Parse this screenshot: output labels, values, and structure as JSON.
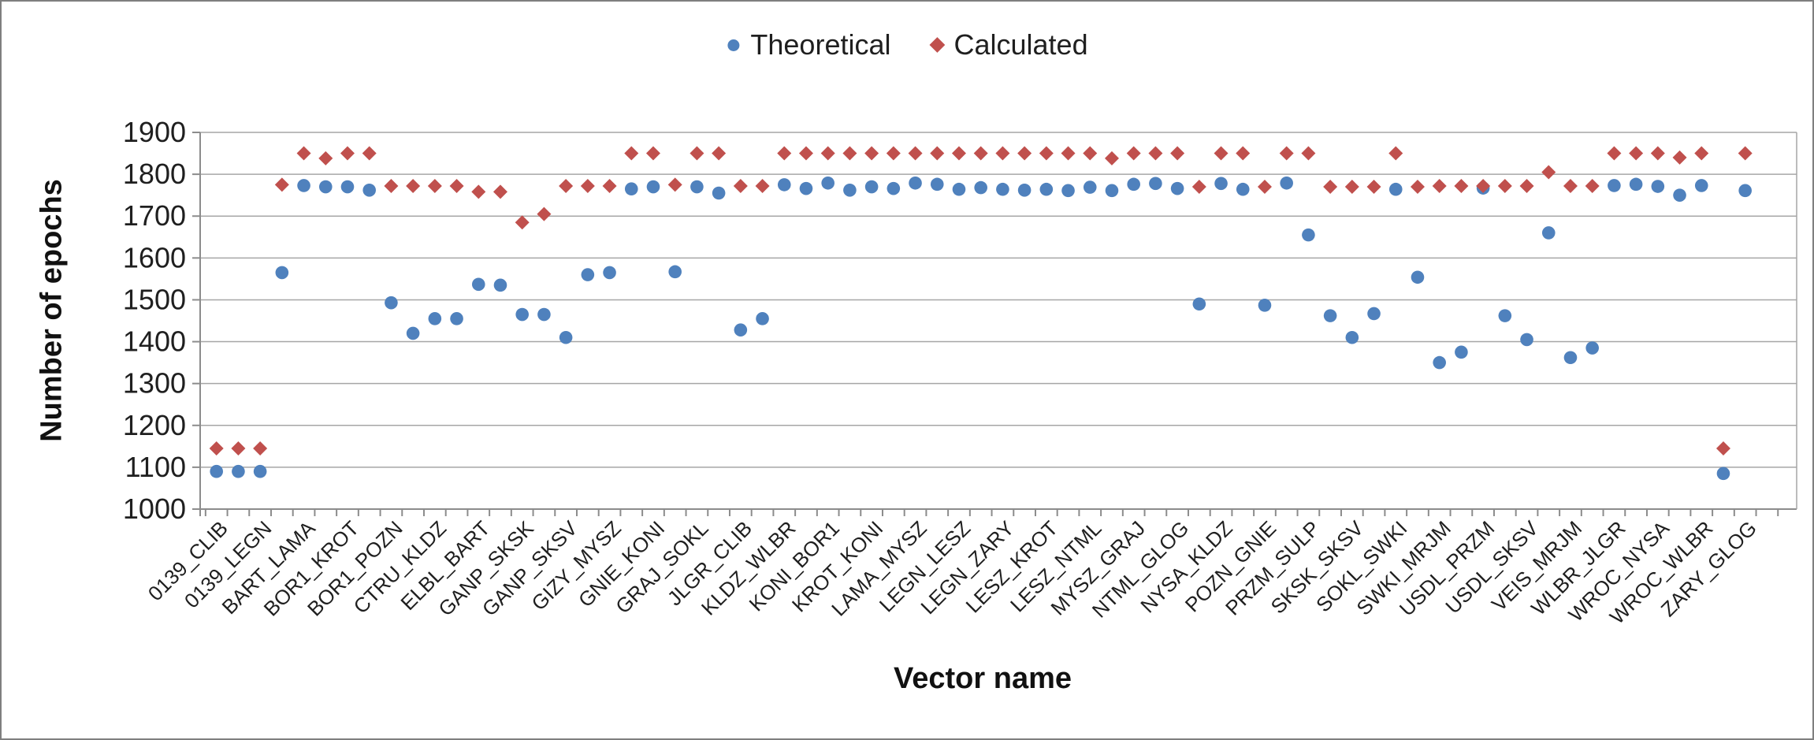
{
  "chart_data": {
    "type": "scatter",
    "title": "",
    "xlabel": "Vector name",
    "ylabel": "Number of epochs",
    "ylim": [
      1000,
      1900
    ],
    "yticks": [
      1900,
      1800,
      1700,
      1600,
      1500,
      1400,
      1300,
      1200,
      1100,
      1000
    ],
    "grid": true,
    "legend_position": "top-center",
    "x_label_rotation_deg": 45,
    "categories": [
      "0139_CLIB",
      "",
      "0139_LEGN",
      "",
      "BART_LAMA",
      "",
      "BOR1_KROT",
      "",
      "BOR1_POZN",
      "",
      "CTRU_KLDZ",
      "",
      "ELBL_BART",
      "",
      "GANP_SKSK",
      "",
      "GANP_SKSV",
      "",
      "GIZY_MYSZ",
      "",
      "GNIE_KONI",
      "",
      "GRAJ_SOKL",
      "",
      "JLGR_CLIB",
      "",
      "KLDZ_WLBR",
      "",
      "KONI_BOR1",
      "",
      "KROT_KONI",
      "",
      "LAMA_MYSZ",
      "",
      "LEGN_LESZ",
      "",
      "LEGN_ZARY",
      "",
      "LESZ_KROT",
      "",
      "LESZ_NTML",
      "",
      "MYSZ_GRAJ",
      "",
      "NTML_GLOG",
      "",
      "NYSA_KLDZ",
      "",
      "POZN_GNIE",
      "",
      "PRZM_SULP",
      "",
      "SKSK_SKSV",
      "",
      "SOKL_SWKI",
      "",
      "SWKI_MRJM",
      "",
      "USDL_PRZM",
      "",
      "USDL_SKSV",
      "",
      "VEIS_MRJM",
      "",
      "WLBR_JLGR",
      "",
      "WROC_NYSA",
      "",
      "WROC_WLBR",
      "",
      "ZARY_GLOG"
    ],
    "series": [
      {
        "name": "Theoretical",
        "marker": "circle",
        "color": "#4F81BD",
        "values": [
          1090,
          1090,
          1090,
          1565,
          1773,
          1770,
          1770,
          1762,
          1493,
          1420,
          1455,
          1455,
          1537,
          1535,
          1465,
          1465,
          1410,
          1560,
          1565,
          1765,
          1770,
          1567,
          1770,
          1755,
          1428,
          1455,
          1775,
          1766,
          1779,
          1762,
          1770,
          1766,
          1779,
          1776,
          1764,
          1768,
          1764,
          1762,
          1764,
          1761,
          1769,
          1761,
          1776,
          1778,
          1766,
          1490,
          1778,
          1764,
          1487,
          1779,
          1655,
          1462,
          1410,
          1467,
          1764,
          1554,
          1350,
          1375,
          1767,
          1462,
          1405,
          1660,
          1362,
          1385,
          1773,
          1776,
          1771,
          1750,
          1773,
          1085,
          1761
        ]
      },
      {
        "name": "Calculated",
        "marker": "diamond",
        "color": "#C0504D",
        "values": [
          1145,
          1145,
          1145,
          1775,
          1850,
          1838,
          1850,
          1850,
          1772,
          1772,
          1772,
          1772,
          1758,
          1758,
          1685,
          1705,
          1772,
          1772,
          1772,
          1850,
          1850,
          1775,
          1850,
          1850,
          1772,
          1772,
          1850,
          1850,
          1850,
          1850,
          1850,
          1850,
          1850,
          1850,
          1850,
          1850,
          1850,
          1850,
          1850,
          1850,
          1850,
          1838,
          1850,
          1850,
          1850,
          1770,
          1850,
          1850,
          1770,
          1850,
          1850,
          1770,
          1770,
          1770,
          1850,
          1770,
          1772,
          1772,
          1772,
          1772,
          1772,
          1805,
          1772,
          1772,
          1850,
          1850,
          1850,
          1840,
          1850,
          1145,
          1850
        ]
      }
    ]
  },
  "colors": {
    "theoretical": "#4F81BD",
    "calculated": "#C0504D",
    "gridline": "#a6a6a6",
    "axis": "#8c8c8c",
    "text": "#1f1f1f",
    "frame_border": "#7f7f7f"
  }
}
